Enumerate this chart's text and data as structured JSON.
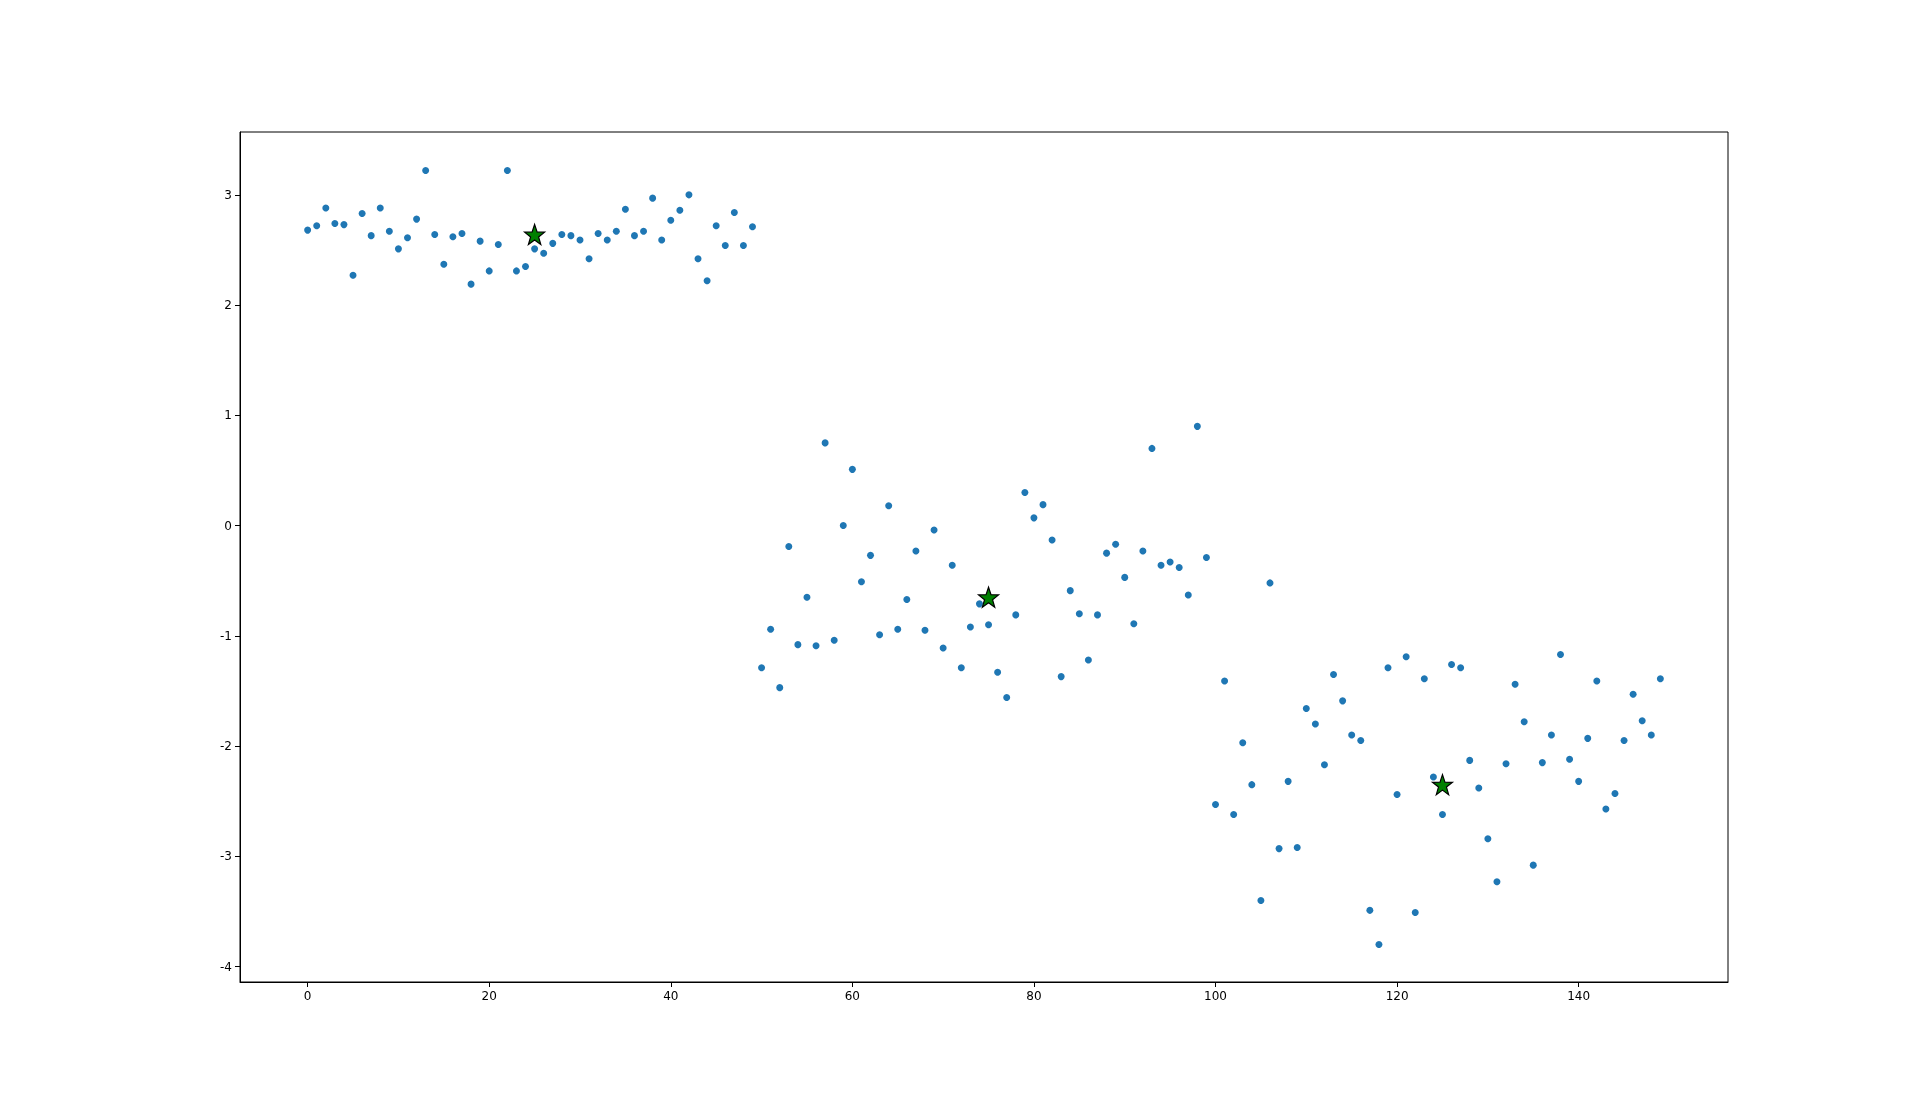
{
  "chart_data": {
    "type": "scatter",
    "grid": false,
    "x": [
      0,
      1,
      2,
      3,
      4,
      5,
      6,
      7,
      8,
      9,
      10,
      11,
      12,
      13,
      14,
      15,
      16,
      17,
      18,
      19,
      20,
      21,
      22,
      23,
      24,
      25,
      26,
      27,
      28,
      29,
      30,
      31,
      32,
      33,
      34,
      35,
      36,
      37,
      38,
      39,
      40,
      41,
      42,
      43,
      44,
      45,
      46,
      47,
      48,
      49,
      50,
      51,
      52,
      53,
      54,
      55,
      56,
      57,
      58,
      59,
      60,
      61,
      62,
      63,
      64,
      65,
      66,
      67,
      68,
      69,
      70,
      71,
      72,
      73,
      74,
      75,
      76,
      77,
      78,
      79,
      80,
      81,
      82,
      83,
      84,
      85,
      86,
      87,
      88,
      89,
      90,
      91,
      92,
      93,
      94,
      95,
      96,
      97,
      98,
      99,
      100,
      101,
      102,
      103,
      104,
      105,
      106,
      107,
      108,
      109,
      110,
      111,
      112,
      113,
      114,
      115,
      116,
      117,
      118,
      119,
      120,
      121,
      122,
      123,
      124,
      125,
      126,
      127,
      128,
      129,
      130,
      131,
      132,
      133,
      134,
      135,
      136,
      137,
      138,
      139,
      140,
      141,
      142,
      143,
      144,
      145,
      146,
      147,
      148,
      149
    ],
    "xlim": [
      -7.45,
      156.45
    ],
    "xticks": [
      0,
      20,
      40,
      60,
      80,
      100,
      120,
      140
    ],
    "ylim": [
      -4.14,
      3.57
    ],
    "yticks": [
      -4,
      -3,
      -2,
      -1,
      0,
      1,
      2,
      3
    ],
    "series": [
      {
        "color": "#1f77b4",
        "marker": "circle",
        "values": [
          2.68,
          2.72,
          2.88,
          2.74,
          2.73,
          2.27,
          2.83,
          2.63,
          2.88,
          2.67,
          2.51,
          2.61,
          2.78,
          3.22,
          2.64,
          2.37,
          2.62,
          2.65,
          2.19,
          2.58,
          2.31,
          2.55,
          3.22,
          2.31,
          2.35,
          2.51,
          2.47,
          2.56,
          2.64,
          2.63,
          2.59,
          2.42,
          2.65,
          2.59,
          2.67,
          2.87,
          2.63,
          2.67,
          2.97,
          2.59,
          2.77,
          2.86,
          3.0,
          2.42,
          2.22,
          2.72,
          2.54,
          2.84,
          2.54,
          2.71,
          -1.29,
          -0.94,
          -1.47,
          -0.19,
          -1.08,
          -0.65,
          -1.09,
          0.75,
          -1.04,
          0.0,
          0.51,
          -0.51,
          -0.27,
          -0.99,
          0.18,
          -0.94,
          -0.67,
          -0.23,
          -0.95,
          -0.04,
          -1.11,
          -0.36,
          -1.29,
          -0.92,
          -0.71,
          -0.9,
          -1.33,
          -1.56,
          -0.81,
          0.3,
          0.07,
          0.19,
          -0.13,
          -1.37,
          -0.59,
          -0.8,
          -1.22,
          -0.81,
          -0.25,
          -0.17,
          -0.47,
          -0.89,
          -0.23,
          0.7,
          -0.36,
          -0.33,
          -0.38,
          -0.63,
          0.9,
          -0.29,
          -2.53,
          -1.41,
          -2.62,
          -1.97,
          -2.35,
          -3.4,
          -0.52,
          -2.93,
          -2.32,
          -2.92,
          -1.66,
          -1.8,
          -2.17,
          -1.35,
          -1.59,
          -1.9,
          -1.95,
          -3.49,
          -3.8,
          -1.29,
          -2.44,
          -1.19,
          -3.51,
          -1.39,
          -2.28,
          -2.62,
          -1.26,
          -1.29,
          -2.13,
          -2.38,
          -2.84,
          -3.23,
          -2.16,
          -1.44,
          -1.78,
          -3.08,
          -2.15,
          -1.9,
          -1.17,
          -2.12,
          -2.32,
          -1.93,
          -1.41,
          -2.57,
          -2.43,
          -1.95,
          -1.53,
          -1.77,
          -1.9,
          -1.39
        ]
      },
      {
        "color": "#008000",
        "marker": "star",
        "x": [
          25,
          75,
          125
        ],
        "values": [
          2.64,
          -0.65,
          -2.35
        ]
      }
    ]
  }
}
